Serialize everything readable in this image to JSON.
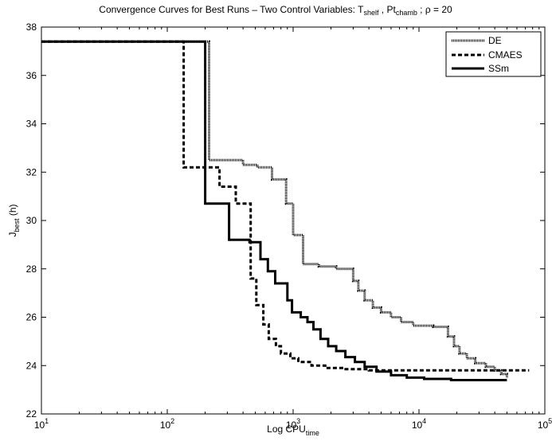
{
  "chart_data": {
    "type": "line",
    "title": {
      "prefix": "Convergence Curves for Best Runs – Two Control Variables: T",
      "sub1": "shelf",
      "mid": " , Pt",
      "sub2": "chamb",
      "suffix": " ; ρ = 20"
    },
    "xlabel": {
      "main": "Log CPU",
      "sub": "time"
    },
    "ylabel": {
      "main": "J",
      "sub": "best",
      "suffix": " (h)"
    },
    "x_scale": "log",
    "xlim": [
      10,
      100000
    ],
    "ylim": [
      22,
      38
    ],
    "x_ticks": [
      {
        "value": 10,
        "base": "10",
        "exp": "1"
      },
      {
        "value": 100,
        "base": "10",
        "exp": "2"
      },
      {
        "value": 1000,
        "base": "10",
        "exp": "3"
      },
      {
        "value": 10000,
        "base": "10",
        "exp": "4"
      },
      {
        "value": 100000,
        "base": "10",
        "exp": "5"
      }
    ],
    "y_ticks": [
      22,
      24,
      26,
      28,
      30,
      32,
      34,
      36,
      38
    ],
    "grid": false,
    "legend_position": "top-right",
    "series": [
      {
        "name": "DE",
        "style": "dotted",
        "color": "#000000",
        "points": [
          [
            10,
            37.4
          ],
          [
            215,
            37.4
          ],
          [
            215,
            32.5
          ],
          [
            400,
            32.5
          ],
          [
            400,
            32.3
          ],
          [
            520,
            32.3
          ],
          [
            520,
            32.2
          ],
          [
            680,
            32.2
          ],
          [
            680,
            31.7
          ],
          [
            880,
            31.7
          ],
          [
            880,
            30.7
          ],
          [
            1000,
            30.7
          ],
          [
            1000,
            29.4
          ],
          [
            1200,
            29.4
          ],
          [
            1200,
            28.2
          ],
          [
            1600,
            28.2
          ],
          [
            1600,
            28.1
          ],
          [
            2200,
            28.1
          ],
          [
            2200,
            28.0
          ],
          [
            3000,
            28.0
          ],
          [
            3000,
            27.5
          ],
          [
            3300,
            27.5
          ],
          [
            3300,
            27.1
          ],
          [
            3700,
            27.1
          ],
          [
            3700,
            26.7
          ],
          [
            4300,
            26.7
          ],
          [
            4300,
            26.4
          ],
          [
            5000,
            26.4
          ],
          [
            5000,
            26.2
          ],
          [
            6000,
            26.2
          ],
          [
            6000,
            26.0
          ],
          [
            7200,
            26.0
          ],
          [
            7200,
            25.8
          ],
          [
            9000,
            25.8
          ],
          [
            9000,
            25.65
          ],
          [
            13000,
            25.65
          ],
          [
            13000,
            25.6
          ],
          [
            17000,
            25.6
          ],
          [
            17000,
            25.2
          ],
          [
            19000,
            25.2
          ],
          [
            19000,
            24.8
          ],
          [
            21000,
            24.8
          ],
          [
            21000,
            24.5
          ],
          [
            24000,
            24.5
          ],
          [
            24000,
            24.3
          ],
          [
            28000,
            24.3
          ],
          [
            28000,
            24.1
          ],
          [
            34000,
            24.1
          ],
          [
            34000,
            23.95
          ],
          [
            40000,
            23.95
          ],
          [
            40000,
            23.8
          ],
          [
            45000,
            23.8
          ],
          [
            45000,
            23.65
          ],
          [
            50000,
            23.65
          ],
          [
            50000,
            23.5
          ]
        ]
      },
      {
        "name": "CMAES",
        "style": "dashed",
        "color": "#000000",
        "points": [
          [
            10,
            37.4
          ],
          [
            135,
            37.4
          ],
          [
            135,
            32.2
          ],
          [
            260,
            32.2
          ],
          [
            260,
            31.4
          ],
          [
            350,
            31.4
          ],
          [
            350,
            30.7
          ],
          [
            460,
            30.7
          ],
          [
            460,
            27.6
          ],
          [
            510,
            27.6
          ],
          [
            510,
            26.5
          ],
          [
            580,
            26.5
          ],
          [
            580,
            25.7
          ],
          [
            640,
            25.7
          ],
          [
            640,
            25.1
          ],
          [
            730,
            25.1
          ],
          [
            730,
            24.8
          ],
          [
            800,
            24.8
          ],
          [
            800,
            24.5
          ],
          [
            950,
            24.5
          ],
          [
            950,
            24.3
          ],
          [
            1100,
            24.3
          ],
          [
            1100,
            24.15
          ],
          [
            1400,
            24.15
          ],
          [
            1400,
            24.0
          ],
          [
            1800,
            24.0
          ],
          [
            1800,
            23.9
          ],
          [
            2500,
            23.9
          ],
          [
            2500,
            23.85
          ],
          [
            4000,
            23.85
          ],
          [
            4000,
            23.8
          ],
          [
            75000,
            23.8
          ]
        ]
      },
      {
        "name": "SSm",
        "style": "solid",
        "color": "#000000",
        "points": [
          [
            10,
            37.4
          ],
          [
            200,
            37.4
          ],
          [
            200,
            30.7
          ],
          [
            310,
            30.7
          ],
          [
            310,
            29.2
          ],
          [
            450,
            29.2
          ],
          [
            450,
            29.1
          ],
          [
            550,
            29.1
          ],
          [
            550,
            28.4
          ],
          [
            630,
            28.4
          ],
          [
            630,
            27.9
          ],
          [
            720,
            27.9
          ],
          [
            720,
            27.4
          ],
          [
            900,
            27.4
          ],
          [
            900,
            26.7
          ],
          [
            980,
            26.7
          ],
          [
            980,
            26.2
          ],
          [
            1150,
            26.2
          ],
          [
            1150,
            26.0
          ],
          [
            1300,
            26.0
          ],
          [
            1300,
            25.8
          ],
          [
            1450,
            25.8
          ],
          [
            1450,
            25.5
          ],
          [
            1650,
            25.5
          ],
          [
            1650,
            25.1
          ],
          [
            1900,
            25.1
          ],
          [
            1900,
            24.8
          ],
          [
            2200,
            24.8
          ],
          [
            2200,
            24.6
          ],
          [
            2600,
            24.6
          ],
          [
            2600,
            24.35
          ],
          [
            3100,
            24.35
          ],
          [
            3100,
            24.15
          ],
          [
            3700,
            24.15
          ],
          [
            3700,
            23.95
          ],
          [
            4600,
            23.95
          ],
          [
            4600,
            23.75
          ],
          [
            6000,
            23.75
          ],
          [
            6000,
            23.6
          ],
          [
            8000,
            23.6
          ],
          [
            8000,
            23.5
          ],
          [
            11000,
            23.5
          ],
          [
            11000,
            23.45
          ],
          [
            18000,
            23.45
          ],
          [
            18000,
            23.4
          ],
          [
            50000,
            23.4
          ]
        ]
      }
    ]
  }
}
